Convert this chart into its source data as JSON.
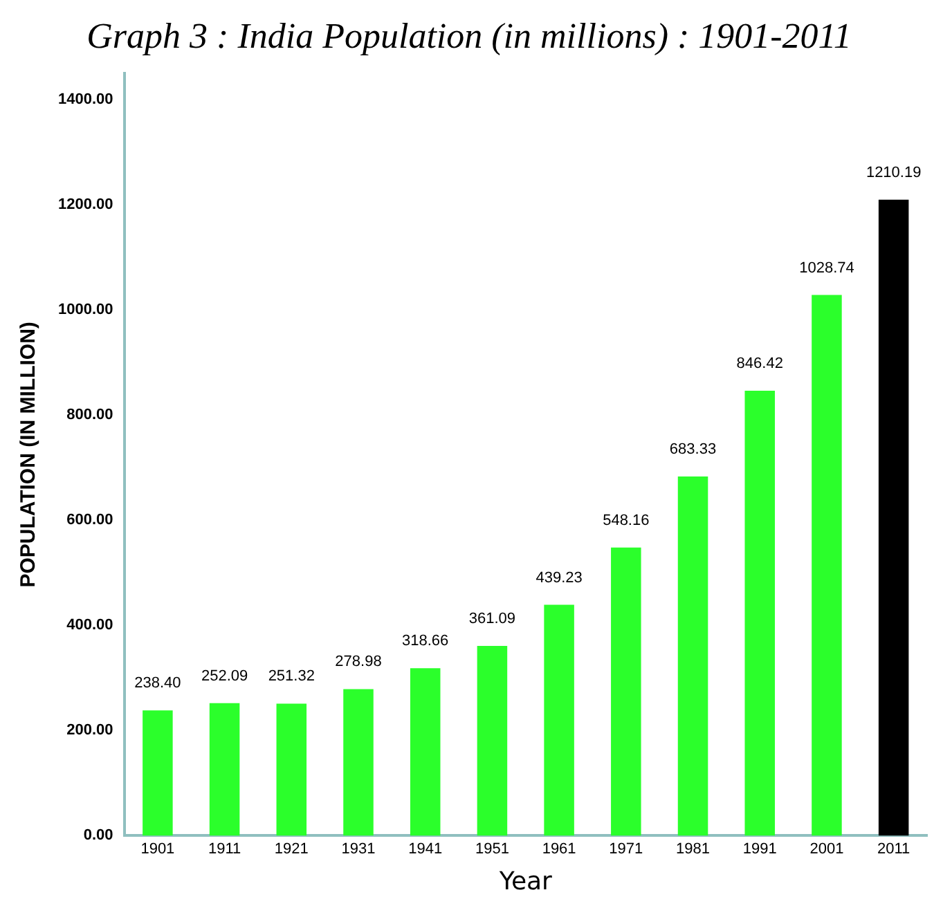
{
  "chart_data": {
    "type": "bar",
    "title": "Graph 3 : India Population (in millions) : 1901-2011",
    "xlabel": "Year",
    "ylabel": "POPULATION (IN MILLION)",
    "categories": [
      "1901",
      "1911",
      "1921",
      "1931",
      "1941",
      "1951",
      "1961",
      "1971",
      "1981",
      "1991",
      "2001",
      "2011"
    ],
    "values": [
      238.4,
      252.09,
      251.32,
      278.98,
      318.66,
      361.09,
      439.23,
      548.16,
      683.33,
      846.42,
      1028.74,
      1210.19
    ],
    "value_labels": [
      "238.40",
      "252.09",
      "251.32",
      "278.98",
      "318.66",
      "361.09",
      "439.23",
      "548.16",
      "683.33",
      "846.42",
      "1028.74",
      "1210.19"
    ],
    "colors": [
      "#2bff2b",
      "#2bff2b",
      "#2bff2b",
      "#2bff2b",
      "#2bff2b",
      "#2bff2b",
      "#2bff2b",
      "#2bff2b",
      "#2bff2b",
      "#2bff2b",
      "#2bff2b",
      "#000000"
    ],
    "ylim": [
      0,
      1450
    ],
    "yticks": [
      {
        "value": 0,
        "label": "0.00"
      },
      {
        "value": 200,
        "label": "200.00"
      },
      {
        "value": 400,
        "label": "400.00"
      },
      {
        "value": 600,
        "label": "600.00"
      },
      {
        "value": 800,
        "label": "800.00"
      },
      {
        "value": 1000,
        "label": "1000.00"
      },
      {
        "value": 1200,
        "label": "1200.00"
      },
      {
        "value": 1400,
        "label": "1400.00"
      }
    ],
    "grid": false,
    "legend": false
  }
}
